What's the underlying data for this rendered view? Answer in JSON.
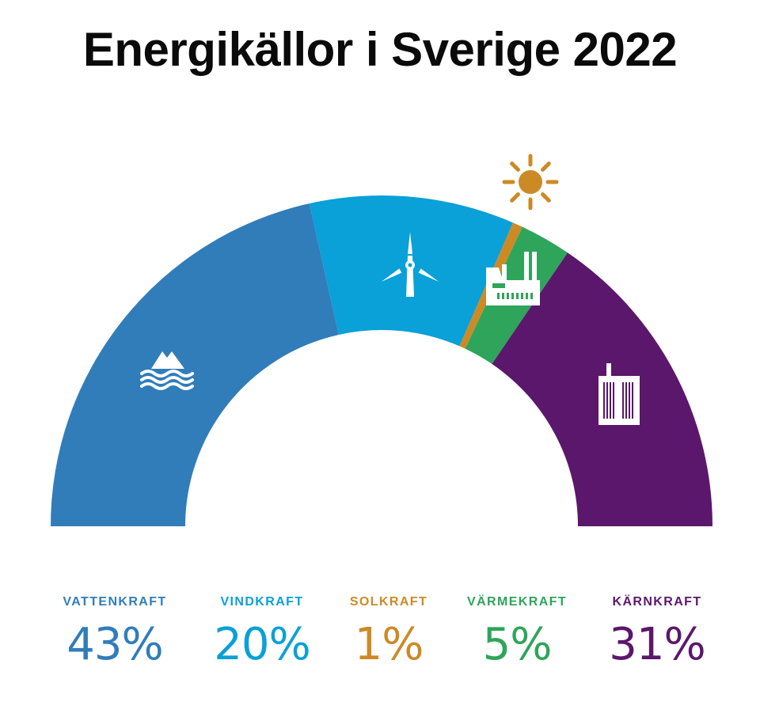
{
  "title": "Energikällor i Sverige 2022",
  "chart_data": {
    "type": "pie",
    "title": "Energikällor i Sverige 2022",
    "subtype": "half-donut",
    "unit": "%",
    "legend_position": "bottom",
    "slices": [
      {
        "label": "VATTENKRAFT",
        "value": 43,
        "display": "43%",
        "color": "#317dba",
        "icon": "water-icon"
      },
      {
        "label": "VINDKRAFT",
        "value": 20,
        "display": "20%",
        "color": "#0aa0d8",
        "icon": "wind-turbine-icon"
      },
      {
        "label": "SOLKRAFT",
        "value": 1,
        "display": "1%",
        "color": "#cc8a26",
        "icon": "sun-icon"
      },
      {
        "label": "VÄRMEKRAFT",
        "value": 5,
        "display": "5%",
        "color": "#2ea55a",
        "icon": "factory-icon"
      },
      {
        "label": "KÄRNKRAFT",
        "value": 31,
        "display": "31%",
        "color": "#5b176b",
        "icon": "nuclear-plant-icon"
      }
    ]
  }
}
